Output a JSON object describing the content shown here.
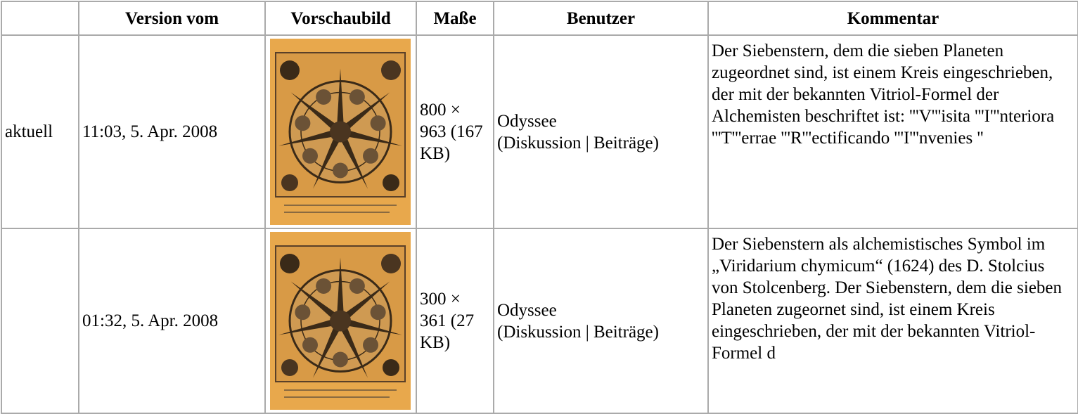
{
  "table": {
    "headers": [
      "",
      "Version vom",
      "Vorschaubild",
      "Maße",
      "Benutzer",
      "Kommentar"
    ],
    "rows": [
      {
        "status": "aktuell",
        "date": "11:03, 5. Apr. 2008",
        "dimensions": "800 × 963 (167 KB)",
        "user": "Odyssee",
        "user_links": "(Diskussion | Beiträge)",
        "comment": "Der Siebenstern, dem die sieben Planeten zugeordnet sind, ist einem Kreis eingeschrieben, der mit der bekannten Vitriol-Formel der Alchemisten beschriftet ist: '''V'''isita '''I'''nteriora '''T'''errae '''R'''ectificando '''I'''nvenies ''"
      },
      {
        "status": "",
        "date": "01:32, 5. Apr. 2008",
        "dimensions": "300 × 361 (27 KB)",
        "user": "Odyssee",
        "user_links": "(Diskussion | Beiträge)",
        "comment": "Der Siebenstern als alchemistisches Symbol im „Viridarium chymicum“ (1624) des D. Stolcius von Stolcenberg. Der Siebenstern, dem die sieben Planeten zugeornet sind, ist einem Kreis eingeschrieben, der mit der bekannten Vitriol-Formel d"
      }
    ]
  }
}
